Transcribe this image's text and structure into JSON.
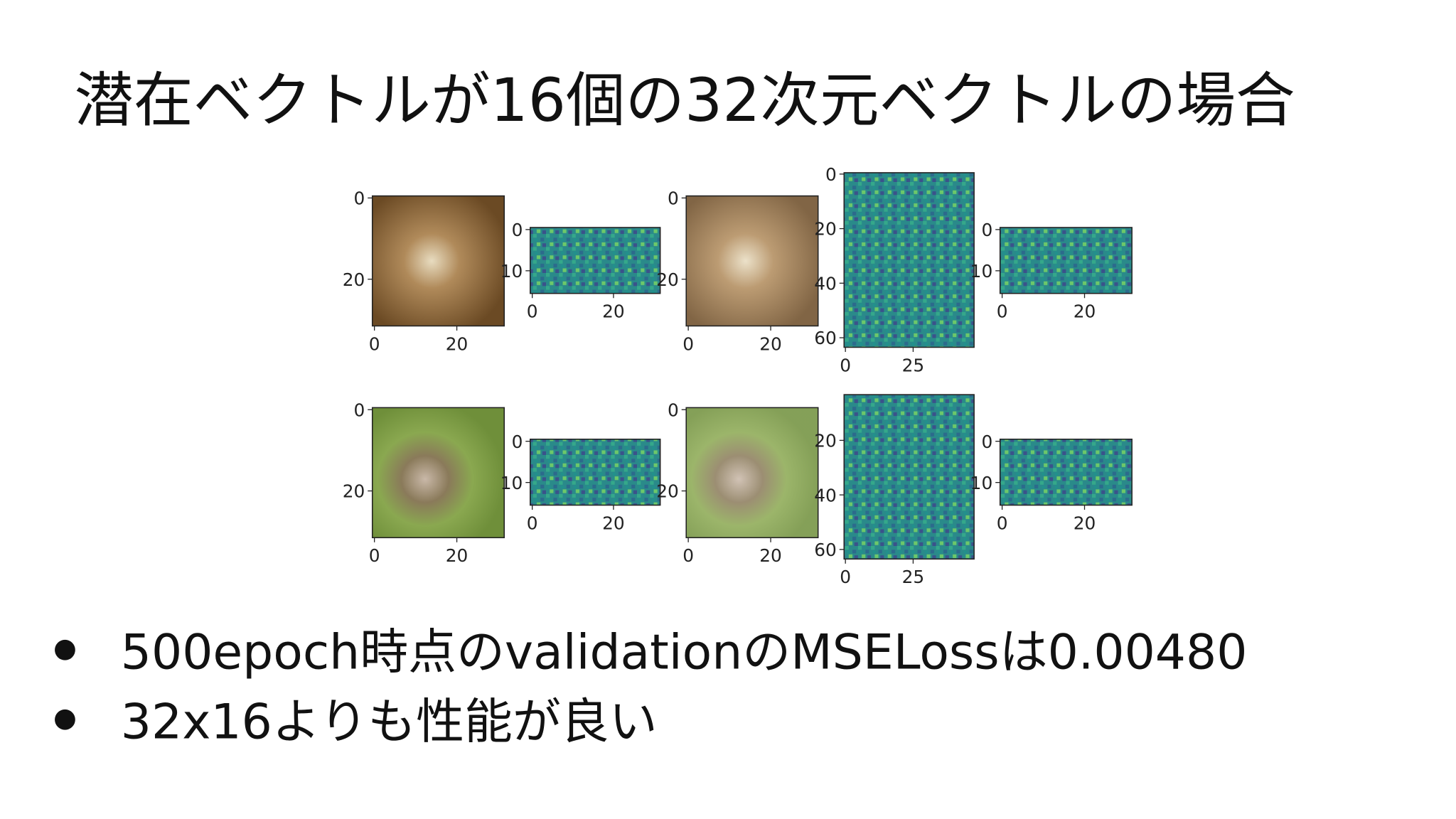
{
  "title": "潜在ベクトルが16個の32次元ベクトルの場合",
  "figure": {
    "rows": [
      {
        "panels": [
          {
            "xticks": [
              0,
              20
            ],
            "yticks": [
              0,
              20
            ]
          },
          {
            "xticks": [
              0,
              20
            ],
            "yticks": [
              0,
              10
            ]
          },
          {
            "xticks": [
              0,
              20
            ],
            "yticks": [
              0,
              20
            ]
          },
          {
            "xticks": [
              0,
              25
            ],
            "yticks": [
              0,
              20,
              40,
              60
            ]
          },
          {
            "xticks": [
              0,
              20
            ],
            "yticks": [
              0,
              10
            ]
          }
        ]
      },
      {
        "panels": [
          {
            "xticks": [
              0,
              20
            ],
            "yticks": [
              0,
              20
            ]
          },
          {
            "xticks": [
              0,
              20
            ],
            "yticks": [
              0,
              10
            ]
          },
          {
            "xticks": [
              0,
              20
            ],
            "yticks": [
              0,
              20
            ]
          },
          {
            "xticks": [
              0,
              25
            ],
            "yticks": [
              20,
              40,
              60
            ]
          },
          {
            "xticks": [
              0,
              20
            ],
            "yticks": [
              0,
              10
            ]
          }
        ]
      }
    ]
  },
  "bullets": [
    "500epoch時点のvalidationのMSELossは0.00480",
    "32x16よりも性能が良い"
  ]
}
